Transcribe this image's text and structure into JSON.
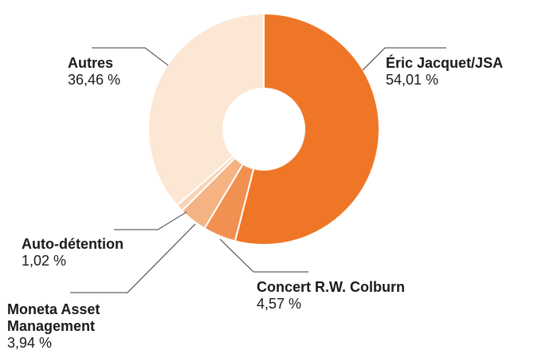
{
  "chart_data": {
    "type": "donut",
    "slices": [
      {
        "name": "Éric Jacquet/JSA",
        "value_label": "54,01 %",
        "value": 54.01,
        "color": "#ef7626"
      },
      {
        "name": "Concert R.W. Colburn",
        "value_label": "4,57 %",
        "value": 4.57,
        "color": "#f19050"
      },
      {
        "name": "Moneta Asset Management",
        "value_label": "3,94 %",
        "value": 3.94,
        "color": "#f5b282"
      },
      {
        "name": "Auto-détention",
        "value_label": "1,02 %",
        "value": 1.02,
        "color": "#f9d3b6"
      },
      {
        "name": "Autres",
        "value_label": "36,46 %",
        "value": 36.46,
        "color": "#fce6d4"
      }
    ],
    "start_angle_deg": 0,
    "direction": "clockwise"
  }
}
